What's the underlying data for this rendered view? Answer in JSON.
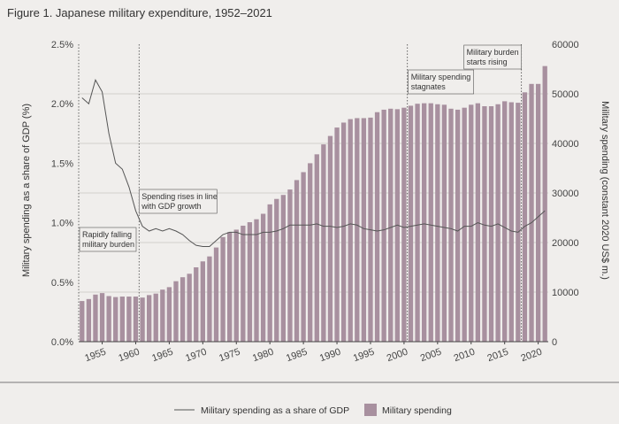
{
  "chart_data": {
    "type": "bar",
    "title": "Figure 1. Japanese military expenditure, 1952–2021",
    "ylabel_left": "Military spending as a share of GDP (%)",
    "ylabel_right": "Military spending (constant 2020 US$ m.)",
    "ylim_left": [
      0,
      2.5
    ],
    "ylim_right": [
      0,
      60000
    ],
    "yticks_left": [
      "0.0%",
      "0.5%",
      "1.0%",
      "1.5%",
      "2.0%",
      "2.5%"
    ],
    "yticks_right": [
      "0",
      "10000",
      "20000",
      "30000",
      "40000",
      "50000",
      "60000"
    ],
    "xticks": [
      "1955",
      "1960",
      "1965",
      "1970",
      "1975",
      "1980",
      "1985",
      "1990",
      "1995",
      "2000",
      "2005",
      "2010",
      "2015",
      "2020"
    ],
    "years": [
      1952,
      1953,
      1954,
      1955,
      1956,
      1957,
      1958,
      1959,
      1960,
      1961,
      1962,
      1963,
      1964,
      1965,
      1966,
      1967,
      1968,
      1969,
      1970,
      1971,
      1972,
      1973,
      1974,
      1975,
      1976,
      1977,
      1978,
      1979,
      1980,
      1981,
      1982,
      1983,
      1984,
      1985,
      1986,
      1987,
      1988,
      1989,
      1990,
      1991,
      1992,
      1993,
      1994,
      1995,
      1996,
      1997,
      1998,
      1999,
      2000,
      2001,
      2002,
      2003,
      2004,
      2005,
      2006,
      2007,
      2008,
      2009,
      2010,
      2011,
      2012,
      2013,
      2014,
      2015,
      2016,
      2017,
      2018,
      2019,
      2020,
      2021
    ],
    "series": [
      {
        "name": "Military spending",
        "kind": "bar",
        "color": "#a8909f",
        "values": [
          8200,
          8600,
          9500,
          9800,
          9200,
          9000,
          9100,
          9100,
          9100,
          8900,
          9400,
          9700,
          10500,
          11000,
          12200,
          13000,
          13700,
          15000,
          16200,
          17200,
          19000,
          21100,
          22100,
          22600,
          23400,
          24100,
          24700,
          25800,
          27700,
          28800,
          29600,
          30700,
          32600,
          34200,
          36000,
          37800,
          39800,
          41500,
          43200,
          44200,
          44900,
          45100,
          45100,
          45200,
          46300,
          46800,
          47000,
          46900,
          47200,
          47600,
          48000,
          48100,
          48100,
          47900,
          47800,
          47000,
          46800,
          47200,
          47800,
          48100,
          47500,
          47500,
          47900,
          48500,
          48300,
          48200,
          50300,
          52000,
          52000,
          55600
        ]
      },
      {
        "name": "Military spending as a share of GDP",
        "kind": "line",
        "color": "#555555",
        "values": [
          2.05,
          2.0,
          2.2,
          2.1,
          1.75,
          1.5,
          1.45,
          1.3,
          1.1,
          0.97,
          0.93,
          0.95,
          0.93,
          0.95,
          0.93,
          0.9,
          0.85,
          0.81,
          0.8,
          0.8,
          0.85,
          0.9,
          0.92,
          0.92,
          0.9,
          0.9,
          0.9,
          0.92,
          0.92,
          0.93,
          0.95,
          0.98,
          0.98,
          0.98,
          0.98,
          0.99,
          0.97,
          0.97,
          0.96,
          0.97,
          0.99,
          0.98,
          0.95,
          0.94,
          0.93,
          0.94,
          0.96,
          0.98,
          0.96,
          0.97,
          0.98,
          0.99,
          0.98,
          0.97,
          0.96,
          0.95,
          0.93,
          0.97,
          0.97,
          1.0,
          0.98,
          0.97,
          0.99,
          0.96,
          0.93,
          0.92,
          0.97,
          1.0,
          1.05,
          1.1
        ]
      }
    ],
    "annotations": [
      {
        "year": 1952,
        "lines": [
          "Rapidly falling",
          "military burden"
        ]
      },
      {
        "year": 1961,
        "lines": [
          "Spending rises in line",
          "with GDP growth"
        ]
      },
      {
        "year": 2001,
        "lines": [
          "Military spending",
          "stagnates"
        ]
      },
      {
        "year": 2018,
        "lines": [
          "Military burden",
          "starts rising"
        ]
      }
    ],
    "legend": [
      {
        "label": "Military spending as a share of GDP",
        "type": "line"
      },
      {
        "label": "Military spending",
        "type": "bar"
      }
    ],
    "legend_position": "bottom-center"
  }
}
